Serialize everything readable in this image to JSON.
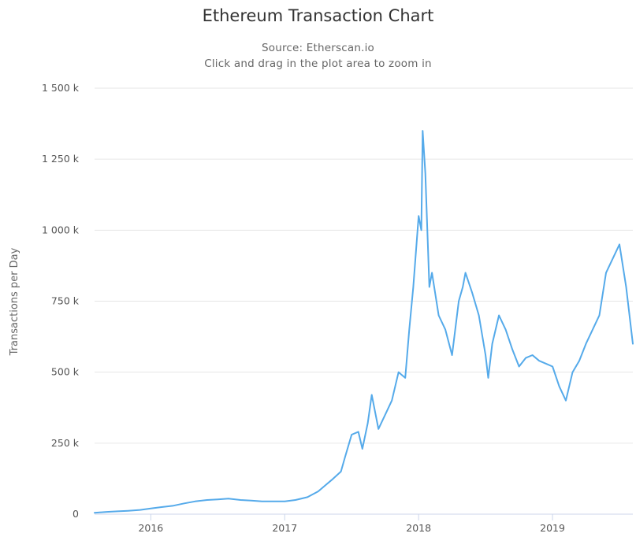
{
  "chart_data": {
    "type": "line",
    "title": "Ethereum Transaction Chart",
    "subtitle": [
      "Source: Etherscan.io",
      "Click and drag in the plot area to zoom in"
    ],
    "xlabel": "",
    "ylabel": "Transactions per Day",
    "ylim": [
      0,
      1500000
    ],
    "y_ticks": [
      {
        "value": 0,
        "label": "0"
      },
      {
        "value": 250000,
        "label": "250 k"
      },
      {
        "value": 500000,
        "label": "500 k"
      },
      {
        "value": 750000,
        "label": "750 k"
      },
      {
        "value": 1000000,
        "label": "1 000 k"
      },
      {
        "value": 1250000,
        "label": "1 250 k"
      },
      {
        "value": 1500000,
        "label": "1 500 k"
      }
    ],
    "xlim": [
      2015.58,
      2019.6
    ],
    "x_ticks": [
      {
        "value": 2016,
        "label": "2016"
      },
      {
        "value": 2017,
        "label": "2017"
      },
      {
        "value": 2018,
        "label": "2018"
      },
      {
        "value": 2019,
        "label": "2019"
      }
    ],
    "grid": true,
    "legend": "none",
    "series_color": "#55aaea",
    "series": [
      {
        "x": [
          2015.58,
          2015.67,
          2015.75,
          2015.83,
          2015.92,
          2016.0,
          2016.08,
          2016.17,
          2016.25,
          2016.33,
          2016.42,
          2016.5,
          2016.58,
          2016.67,
          2016.75,
          2016.83,
          2016.92,
          2017.0,
          2017.08,
          2017.17,
          2017.25,
          2017.3,
          2017.35,
          2017.42,
          2017.45,
          2017.5,
          2017.55,
          2017.58,
          2017.62,
          2017.65,
          2017.7,
          2017.75,
          2017.8,
          2017.85,
          2017.9,
          2017.93,
          2017.96,
          2018.0,
          2018.02,
          2018.03,
          2018.05,
          2018.08,
          2018.1,
          2018.15,
          2018.2,
          2018.25,
          2018.3,
          2018.33,
          2018.35,
          2018.4,
          2018.45,
          2018.5,
          2018.52,
          2018.55,
          2018.6,
          2018.65,
          2018.7,
          2018.75,
          2018.8,
          2018.85,
          2018.9,
          2018.95,
          2019.0,
          2019.05,
          2019.1,
          2019.15,
          2019.2,
          2019.25,
          2019.3,
          2019.35,
          2019.4,
          2019.45,
          2019.5,
          2019.55,
          2019.6
        ],
        "y": [
          5000,
          8000,
          10000,
          12000,
          15000,
          20000,
          25000,
          30000,
          38000,
          45000,
          50000,
          52000,
          55000,
          50000,
          48000,
          45000,
          45000,
          45000,
          50000,
          60000,
          80000,
          100000,
          120000,
          150000,
          200000,
          280000,
          290000,
          230000,
          320000,
          420000,
          300000,
          350000,
          400000,
          500000,
          480000,
          650000,
          800000,
          1050000,
          1000000,
          1350000,
          1200000,
          800000,
          850000,
          700000,
          650000,
          560000,
          750000,
          800000,
          850000,
          780000,
          700000,
          560000,
          480000,
          600000,
          700000,
          650000,
          580000,
          520000,
          550000,
          560000,
          540000,
          530000,
          520000,
          450000,
          400000,
          500000,
          540000,
          600000,
          650000,
          700000,
          850000,
          900000,
          950000,
          800000,
          600000
        ]
      }
    ]
  }
}
